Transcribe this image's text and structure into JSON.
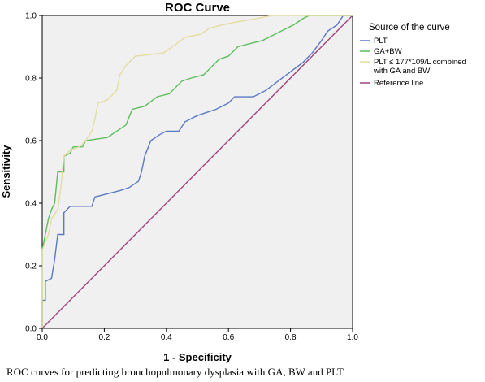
{
  "caption": "ROC curves for predicting bronchopulmonary dysplasia with GA, BW and PLT",
  "chart_data": {
    "type": "line",
    "title": "ROC Curve",
    "xlabel": "1 - Specificity",
    "ylabel": "Sensitivity",
    "xlim": [
      0,
      1
    ],
    "ylim": [
      0,
      1
    ],
    "x_ticks": [
      "0.0",
      "0.2",
      "0.4",
      "0.6",
      "0.8",
      "1.0"
    ],
    "y_ticks": [
      "0.0",
      "0.2",
      "0.4",
      "0.6",
      "0.8",
      "1.0"
    ],
    "grid": false,
    "plot_background": "#f0f0f0",
    "legend": {
      "title": "Source of the curve",
      "placement": "right",
      "entries": [
        "PLT",
        "GA+BW",
        "PLT ≤ 177*109/L combined with GA and BW",
        "Reference line"
      ]
    },
    "series": [
      {
        "name": "PLT",
        "color": "#5b78c4",
        "points": [
          [
            0,
            0
          ],
          [
            0,
            0.09
          ],
          [
            0.01,
            0.09
          ],
          [
            0.01,
            0.15
          ],
          [
            0.03,
            0.16
          ],
          [
            0.04,
            0.22
          ],
          [
            0.05,
            0.3
          ],
          [
            0.07,
            0.3
          ],
          [
            0.07,
            0.37
          ],
          [
            0.09,
            0.39
          ],
          [
            0.16,
            0.39
          ],
          [
            0.17,
            0.42
          ],
          [
            0.21,
            0.43
          ],
          [
            0.25,
            0.44
          ],
          [
            0.28,
            0.45
          ],
          [
            0.31,
            0.47
          ],
          [
            0.32,
            0.5
          ],
          [
            0.33,
            0.55
          ],
          [
            0.35,
            0.6
          ],
          [
            0.38,
            0.62
          ],
          [
            0.4,
            0.63
          ],
          [
            0.44,
            0.63
          ],
          [
            0.46,
            0.66
          ],
          [
            0.5,
            0.68
          ],
          [
            0.56,
            0.7
          ],
          [
            0.6,
            0.72
          ],
          [
            0.62,
            0.74
          ],
          [
            0.68,
            0.74
          ],
          [
            0.72,
            0.76
          ],
          [
            0.76,
            0.79
          ],
          [
            0.8,
            0.82
          ],
          [
            0.84,
            0.85
          ],
          [
            0.87,
            0.88
          ],
          [
            0.9,
            0.92
          ],
          [
            0.92,
            0.95
          ],
          [
            0.95,
            0.97
          ],
          [
            0.97,
            1
          ],
          [
            1,
            1
          ]
        ]
      },
      {
        "name": "GA+BW",
        "color": "#5cbe5c",
        "points": [
          [
            0,
            0
          ],
          [
            0,
            0.25
          ],
          [
            0.01,
            0.3
          ],
          [
            0.02,
            0.35
          ],
          [
            0.03,
            0.38
          ],
          [
            0.04,
            0.4
          ],
          [
            0.05,
            0.5
          ],
          [
            0.07,
            0.5
          ],
          [
            0.07,
            0.55
          ],
          [
            0.09,
            0.56
          ],
          [
            0.1,
            0.58
          ],
          [
            0.13,
            0.58
          ],
          [
            0.14,
            0.6
          ],
          [
            0.21,
            0.61
          ],
          [
            0.24,
            0.63
          ],
          [
            0.27,
            0.65
          ],
          [
            0.29,
            0.7
          ],
          [
            0.33,
            0.71
          ],
          [
            0.37,
            0.74
          ],
          [
            0.41,
            0.75
          ],
          [
            0.45,
            0.79
          ],
          [
            0.48,
            0.8
          ],
          [
            0.52,
            0.81
          ],
          [
            0.54,
            0.83
          ],
          [
            0.57,
            0.86
          ],
          [
            0.6,
            0.87
          ],
          [
            0.63,
            0.9
          ],
          [
            0.67,
            0.91
          ],
          [
            0.71,
            0.92
          ],
          [
            0.77,
            0.95
          ],
          [
            0.81,
            0.97
          ],
          [
            0.84,
            0.99
          ],
          [
            0.86,
            1
          ],
          [
            1,
            1
          ]
        ]
      },
      {
        "name": "PLT ≤ 177*109/L combined with GA and BW",
        "color": "#e3dd9f",
        "points": [
          [
            0,
            0
          ],
          [
            0,
            0.25
          ],
          [
            0.02,
            0.3
          ],
          [
            0.03,
            0.35
          ],
          [
            0.05,
            0.38
          ],
          [
            0.06,
            0.45
          ],
          [
            0.07,
            0.55
          ],
          [
            0.09,
            0.57
          ],
          [
            0.12,
            0.58
          ],
          [
            0.14,
            0.6
          ],
          [
            0.16,
            0.63
          ],
          [
            0.17,
            0.67
          ],
          [
            0.18,
            0.72
          ],
          [
            0.21,
            0.73
          ],
          [
            0.24,
            0.76
          ],
          [
            0.25,
            0.81
          ],
          [
            0.27,
            0.84
          ],
          [
            0.3,
            0.87
          ],
          [
            0.39,
            0.88
          ],
          [
            0.42,
            0.9
          ],
          [
            0.46,
            0.93
          ],
          [
            0.51,
            0.94
          ],
          [
            0.54,
            0.96
          ],
          [
            0.58,
            0.97
          ],
          [
            0.63,
            0.98
          ],
          [
            0.69,
            0.99
          ],
          [
            0.74,
            1
          ],
          [
            1,
            1
          ]
        ]
      },
      {
        "name": "Reference line",
        "color": "#a2437f",
        "points": [
          [
            0,
            0
          ],
          [
            1,
            1
          ]
        ]
      }
    ]
  }
}
